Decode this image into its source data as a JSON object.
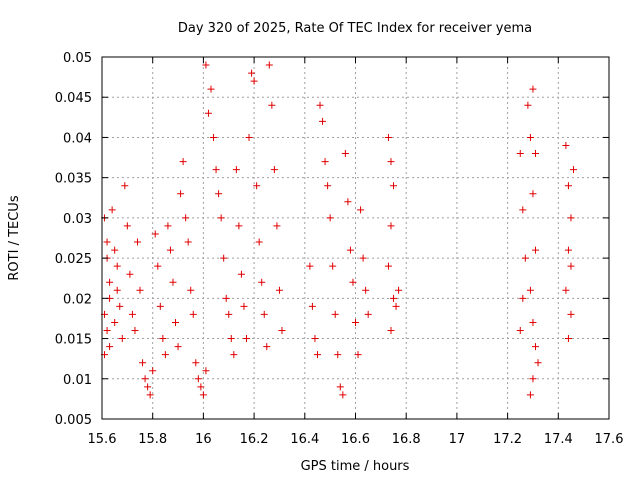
{
  "chart_data": {
    "type": "scatter",
    "title": "Day 320 of 2025, Rate Of TEC Index for receiver yema",
    "xlabel": "GPS time / hours",
    "ylabel": "ROTI / TECUs",
    "xlim": [
      15.6,
      17.6
    ],
    "ylim": [
      0.005,
      0.05
    ],
    "xticks": [
      "15.6",
      "15.8",
      "16",
      "16.2",
      "16.4",
      "16.6",
      "16.8",
      "17",
      "17.2",
      "17.4",
      "17.6"
    ],
    "yticks": [
      "0.005",
      "0.01",
      "0.015",
      "0.02",
      "0.025",
      "0.03",
      "0.035",
      "0.04",
      "0.045",
      "0.05"
    ],
    "grid": true,
    "marker": "+",
    "color": "#e00000",
    "series": [
      {
        "name": "ROTI",
        "points": [
          [
            15.61,
            0.03
          ],
          [
            15.62,
            0.027
          ],
          [
            15.62,
            0.025
          ],
          [
            15.63,
            0.022
          ],
          [
            15.63,
            0.02
          ],
          [
            15.61,
            0.018
          ],
          [
            15.62,
            0.016
          ],
          [
            15.63,
            0.014
          ],
          [
            15.61,
            0.013
          ],
          [
            15.64,
            0.031
          ],
          [
            15.65,
            0.026
          ],
          [
            15.66,
            0.024
          ],
          [
            15.66,
            0.021
          ],
          [
            15.67,
            0.019
          ],
          [
            15.65,
            0.017
          ],
          [
            15.68,
            0.015
          ],
          [
            15.69,
            0.034
          ],
          [
            15.7,
            0.029
          ],
          [
            15.71,
            0.023
          ],
          [
            15.72,
            0.018
          ],
          [
            15.73,
            0.016
          ],
          [
            15.74,
            0.027
          ],
          [
            15.75,
            0.021
          ],
          [
            15.76,
            0.012
          ],
          [
            15.77,
            0.01
          ],
          [
            15.78,
            0.009
          ],
          [
            15.79,
            0.008
          ],
          [
            15.8,
            0.011
          ],
          [
            15.81,
            0.028
          ],
          [
            15.82,
            0.024
          ],
          [
            15.83,
            0.019
          ],
          [
            15.84,
            0.015
          ],
          [
            15.85,
            0.013
          ],
          [
            15.86,
            0.029
          ],
          [
            15.87,
            0.026
          ],
          [
            15.88,
            0.022
          ],
          [
            15.89,
            0.017
          ],
          [
            15.9,
            0.014
          ],
          [
            15.91,
            0.033
          ],
          [
            15.92,
            0.037
          ],
          [
            15.93,
            0.03
          ],
          [
            15.94,
            0.027
          ],
          [
            15.95,
            0.021
          ],
          [
            15.96,
            0.018
          ],
          [
            15.97,
            0.012
          ],
          [
            15.98,
            0.01
          ],
          [
            15.99,
            0.009
          ],
          [
            16.0,
            0.008
          ],
          [
            16.01,
            0.011
          ],
          [
            16.02,
            0.043
          ],
          [
            16.01,
            0.049
          ],
          [
            16.03,
            0.046
          ],
          [
            16.04,
            0.04
          ],
          [
            16.05,
            0.036
          ],
          [
            16.06,
            0.033
          ],
          [
            16.07,
            0.03
          ],
          [
            16.08,
            0.025
          ],
          [
            16.09,
            0.02
          ],
          [
            16.1,
            0.018
          ],
          [
            16.11,
            0.015
          ],
          [
            16.12,
            0.013
          ],
          [
            16.13,
            0.036
          ],
          [
            16.14,
            0.029
          ],
          [
            16.15,
            0.023
          ],
          [
            16.16,
            0.019
          ],
          [
            16.17,
            0.015
          ],
          [
            16.18,
            0.04
          ],
          [
            16.19,
            0.048
          ],
          [
            16.2,
            0.047
          ],
          [
            16.21,
            0.034
          ],
          [
            16.22,
            0.027
          ],
          [
            16.23,
            0.022
          ],
          [
            16.24,
            0.018
          ],
          [
            16.25,
            0.014
          ],
          [
            16.26,
            0.049
          ],
          [
            16.27,
            0.044
          ],
          [
            16.28,
            0.036
          ],
          [
            16.29,
            0.029
          ],
          [
            16.3,
            0.021
          ],
          [
            16.31,
            0.016
          ],
          [
            16.42,
            0.024
          ],
          [
            16.43,
            0.019
          ],
          [
            16.44,
            0.015
          ],
          [
            16.45,
            0.013
          ],
          [
            16.46,
            0.044
          ],
          [
            16.47,
            0.042
          ],
          [
            16.48,
            0.037
          ],
          [
            16.49,
            0.034
          ],
          [
            16.5,
            0.03
          ],
          [
            16.51,
            0.024
          ],
          [
            16.52,
            0.018
          ],
          [
            16.53,
            0.013
          ],
          [
            16.54,
            0.009
          ],
          [
            16.55,
            0.008
          ],
          [
            16.56,
            0.038
          ],
          [
            16.57,
            0.032
          ],
          [
            16.58,
            0.026
          ],
          [
            16.59,
            0.022
          ],
          [
            16.6,
            0.017
          ],
          [
            16.61,
            0.013
          ],
          [
            16.62,
            0.031
          ],
          [
            16.63,
            0.025
          ],
          [
            16.64,
            0.021
          ],
          [
            16.65,
            0.018
          ],
          [
            16.73,
            0.04
          ],
          [
            16.74,
            0.037
          ],
          [
            16.75,
            0.034
          ],
          [
            16.74,
            0.029
          ],
          [
            16.73,
            0.024
          ],
          [
            16.75,
            0.02
          ],
          [
            16.74,
            0.016
          ],
          [
            16.76,
            0.019
          ],
          [
            16.77,
            0.021
          ],
          [
            17.25,
            0.038
          ],
          [
            17.26,
            0.031
          ],
          [
            17.27,
            0.025
          ],
          [
            17.26,
            0.02
          ],
          [
            17.25,
            0.016
          ],
          [
            17.28,
            0.044
          ],
          [
            17.29,
            0.04
          ],
          [
            17.3,
            0.046
          ],
          [
            17.31,
            0.038
          ],
          [
            17.3,
            0.033
          ],
          [
            17.31,
            0.026
          ],
          [
            17.29,
            0.021
          ],
          [
            17.3,
            0.017
          ],
          [
            17.31,
            0.014
          ],
          [
            17.3,
            0.01
          ],
          [
            17.29,
            0.008
          ],
          [
            17.32,
            0.012
          ],
          [
            17.43,
            0.039
          ],
          [
            17.44,
            0.034
          ],
          [
            17.45,
            0.03
          ],
          [
            17.44,
            0.026
          ],
          [
            17.43,
            0.021
          ],
          [
            17.45,
            0.018
          ],
          [
            17.44,
            0.015
          ],
          [
            17.46,
            0.036
          ],
          [
            17.45,
            0.024
          ]
        ]
      }
    ]
  }
}
